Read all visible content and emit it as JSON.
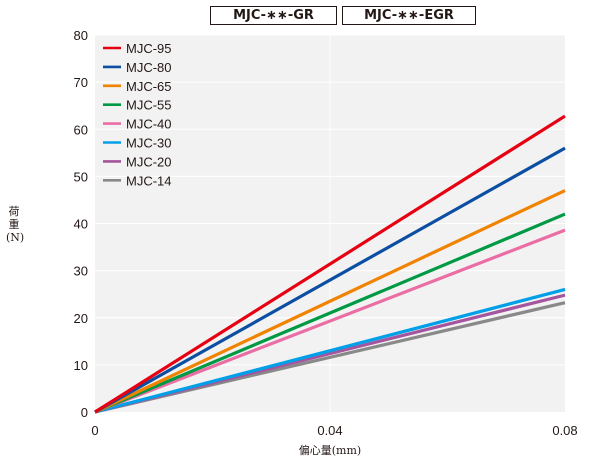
{
  "header": {
    "title_1": "MJC-∗∗-GR",
    "title_2": "MJC-∗∗-EGR"
  },
  "chart_data": {
    "type": "line",
    "ylabel": "荷重(N)",
    "xlabel": "偏心量(mm)",
    "xlim": [
      0,
      0.08
    ],
    "ylim": [
      0,
      80
    ],
    "x_ticks": [
      "0",
      "0.04",
      "0.08"
    ],
    "y_ticks": [
      "0",
      "10",
      "20",
      "30",
      "40",
      "50",
      "60",
      "70",
      "80"
    ],
    "grid": true,
    "legend_position": "top-left",
    "series": [
      {
        "name": "MJC-95",
        "color": "#e60012",
        "x": [
          0,
          0.08
        ],
        "y": [
          0,
          62.8
        ]
      },
      {
        "name": "MJC-80",
        "color": "#0b4ea2",
        "x": [
          0,
          0.08
        ],
        "y": [
          0,
          56.0
        ]
      },
      {
        "name": "MJC-65",
        "color": "#f08300",
        "x": [
          0,
          0.08
        ],
        "y": [
          0,
          47.0
        ]
      },
      {
        "name": "MJC-55",
        "color": "#009944",
        "x": [
          0,
          0.08
        ],
        "y": [
          0,
          42.0
        ]
      },
      {
        "name": "MJC-40",
        "color": "#ea6da4",
        "x": [
          0,
          0.08
        ],
        "y": [
          0,
          38.6
        ]
      },
      {
        "name": "MJC-30",
        "color": "#00a0e9",
        "x": [
          0,
          0.08
        ],
        "y": [
          0,
          26.0
        ]
      },
      {
        "name": "MJC-20",
        "color": "#a5559e",
        "x": [
          0,
          0.08
        ],
        "y": [
          0,
          24.8
        ]
      },
      {
        "name": "MJC-14",
        "color": "#898989",
        "x": [
          0,
          0.08
        ],
        "y": [
          0,
          23.2
        ]
      }
    ]
  }
}
